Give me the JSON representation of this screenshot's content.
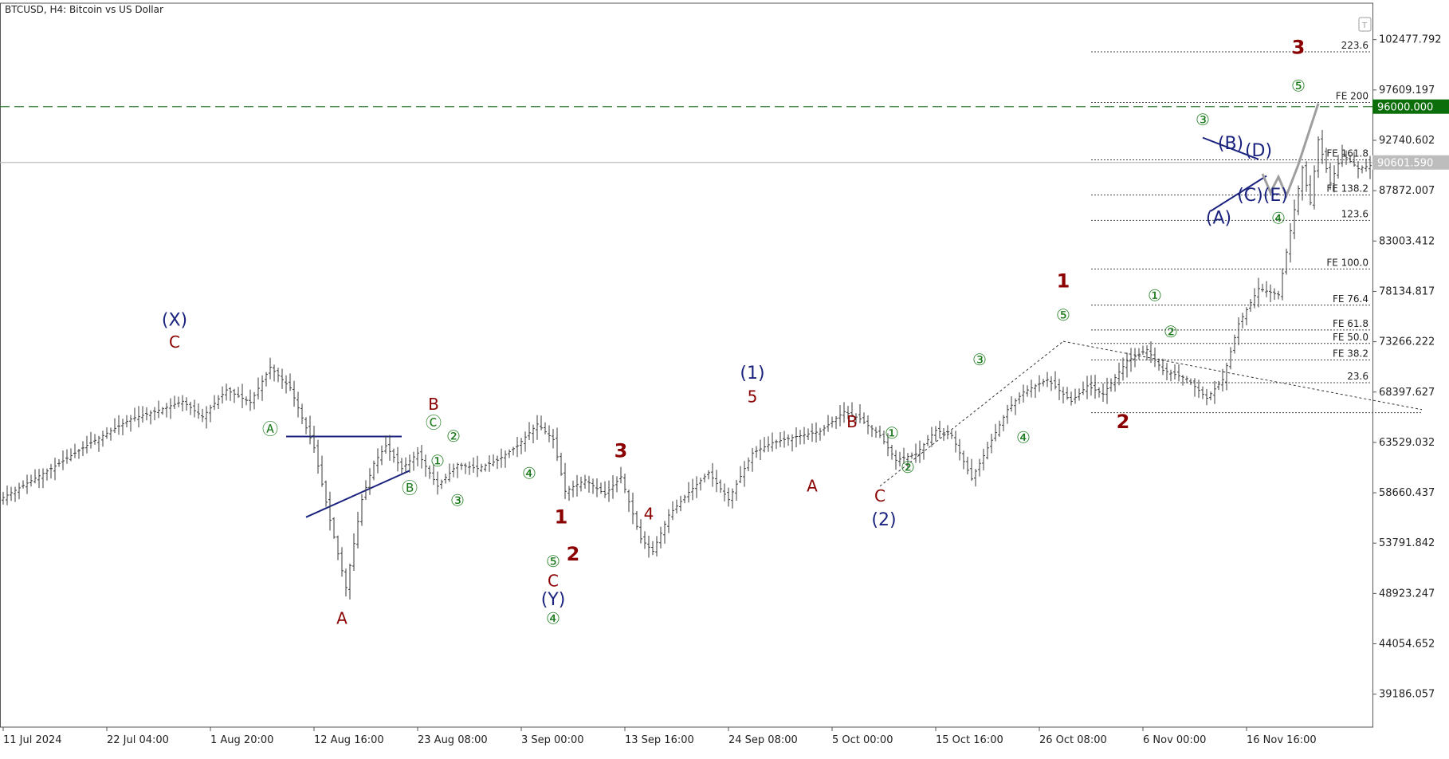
{
  "header": {
    "symbol_title": "BTCUSD, H4:  Bitcoin vs US Dollar",
    "corner_icon": "T"
  },
  "colors": {
    "candle": "#3a3a3a",
    "wave_red": "#8b0000",
    "wave_navy": "#1a237e",
    "wave_green": "#1b7a1b",
    "level_line": "#2e7d32",
    "current_line": "#bdbdbd",
    "projection": "#9e9e9e",
    "fib": "#444444",
    "trendline": "#1a237e"
  },
  "chart_data": {
    "type": "candlestick",
    "timeframe": "H4",
    "ylim": [
      36000,
      106000
    ],
    "y_ticks": [
      "102477.792",
      "97609.197",
      "92740.602",
      "87872.007",
      "83003.412",
      "78134.817",
      "73266.222",
      "68397.627",
      "63529.032",
      "58660.437",
      "53791.842",
      "48923.247",
      "44054.652",
      "39186.057"
    ],
    "x_ticks": [
      "11 Jul 2024",
      "22 Jul 04:00",
      "1 Aug 20:00",
      "12 Aug 16:00",
      "23 Aug 08:00",
      "3 Sep 00:00",
      "13 Sep 16:00",
      "24 Sep 08:00",
      "5 Oct 00:00",
      "15 Oct 16:00",
      "26 Oct 08:00",
      "6 Nov 00:00",
      "16 Nov 16:00"
    ],
    "price_path": [
      [
        0,
        58200
      ],
      [
        12,
        61000
      ],
      [
        22,
        63500
      ],
      [
        32,
        65800
      ],
      [
        38,
        66500
      ],
      [
        45,
        67500
      ],
      [
        50,
        66000
      ],
      [
        56,
        68600
      ],
      [
        62,
        67400
      ],
      [
        67,
        70800
      ],
      [
        72,
        68800
      ],
      [
        78,
        63000
      ],
      [
        82,
        56000
      ],
      [
        86,
        49500
      ],
      [
        90,
        58000
      ],
      [
        93,
        61500
      ],
      [
        96,
        63200
      ],
      [
        100,
        61000
      ],
      [
        104,
        62500
      ],
      [
        109,
        59300
      ],
      [
        114,
        61400
      ],
      [
        119,
        61000
      ],
      [
        124,
        61800
      ],
      [
        129,
        63200
      ],
      [
        134,
        65300
      ],
      [
        138,
        63800
      ],
      [
        141,
        58800
      ],
      [
        146,
        59900
      ],
      [
        151,
        58500
      ],
      [
        155,
        60200
      ],
      [
        160,
        54200
      ],
      [
        163,
        53000
      ],
      [
        167,
        56500
      ],
      [
        172,
        58700
      ],
      [
        177,
        60600
      ],
      [
        182,
        58000
      ],
      [
        188,
        62500
      ],
      [
        193,
        63500
      ],
      [
        199,
        64100
      ],
      [
        205,
        64600
      ],
      [
        211,
        66500
      ],
      [
        215,
        65800
      ],
      [
        220,
        64200
      ],
      [
        224,
        61800
      ],
      [
        229,
        62400
      ],
      [
        234,
        64700
      ],
      [
        238,
        64200
      ],
      [
        243,
        60000
      ],
      [
        247,
        63000
      ],
      [
        252,
        66700
      ],
      [
        256,
        68400
      ],
      [
        262,
        69600
      ],
      [
        268,
        67500
      ],
      [
        272,
        69000
      ],
      [
        276,
        68200
      ],
      [
        282,
        71400
      ],
      [
        287,
        72500
      ],
      [
        291,
        70500
      ],
      [
        297,
        69700
      ],
      [
        302,
        67800
      ],
      [
        306,
        69600
      ],
      [
        310,
        75000
      ],
      [
        315,
        78400
      ],
      [
        320,
        77800
      ],
      [
        323,
        84000
      ],
      [
        326,
        90100
      ],
      [
        328,
        86700
      ],
      [
        330,
        92800
      ],
      [
        333,
        88600
      ],
      [
        336,
        91400
      ],
      [
        340,
        90000
      ],
      [
        343,
        90300
      ]
    ],
    "fib_levels": [
      {
        "label": "223.6",
        "price": 101300
      },
      {
        "label": "FE 200",
        "price": 96400
      },
      {
        "label": "FE 161.8",
        "price": 90850
      },
      {
        "label": "FE 138.2",
        "price": 87450
      },
      {
        "label": "123.6",
        "price": 85000
      },
      {
        "label": "FE 100.0",
        "price": 80300
      },
      {
        "label": "FE 76.4",
        "price": 76800
      },
      {
        "label": "FE 61.8",
        "price": 74400
      },
      {
        "label": "FE 50.0",
        "price": 73100
      },
      {
        "label": "FE 38.2",
        "price": 71500
      },
      {
        "label": "23.6",
        "price": 69300
      },
      {
        "label": "",
        "price": 66400
      }
    ],
    "horizontal_lines": [
      {
        "label": "96000.000",
        "price": 96000,
        "style": "dashed"
      },
      {
        "label": "90601.590",
        "price": 90601.59,
        "style": "solid"
      }
    ],
    "wave_labels": [
      {
        "text": "(X)",
        "i": 43,
        "price": 74800,
        "color": "navy"
      },
      {
        "text": "C",
        "i": 43,
        "price": 72700,
        "color": "red"
      },
      {
        "text": "A",
        "i": 85,
        "price": 46000,
        "color": "red"
      },
      {
        "text": "Ⓐ",
        "i": 67,
        "price": 64300,
        "color": "green"
      },
      {
        "text": "B",
        "i": 108,
        "price": 66700,
        "color": "red"
      },
      {
        "text": "Ⓒ",
        "i": 108,
        "price": 64900,
        "color": "green"
      },
      {
        "text": "②",
        "i": 113,
        "price": 63600,
        "color": "green"
      },
      {
        "text": "①",
        "i": 109,
        "price": 61200,
        "color": "green"
      },
      {
        "text": "Ⓑ",
        "i": 102,
        "price": 58600,
        "color": "green"
      },
      {
        "text": "③",
        "i": 114,
        "price": 57400,
        "color": "green"
      },
      {
        "text": "④",
        "i": 132,
        "price": 60000,
        "color": "green"
      },
      {
        "text": "1",
        "i": 140,
        "price": 55700,
        "color": "red"
      },
      {
        "text": "2",
        "i": 143,
        "price": 52100,
        "color": "red"
      },
      {
        "text": "⑤",
        "i": 138,
        "price": 51500,
        "color": "green"
      },
      {
        "text": "C",
        "i": 138,
        "price": 49600,
        "color": "red"
      },
      {
        "text": "(Y)",
        "i": 138,
        "price": 47800,
        "color": "navy"
      },
      {
        "text": "④",
        "i": 138,
        "price": 46000,
        "color": "green"
      },
      {
        "text": "3",
        "i": 155,
        "price": 62100,
        "color": "red"
      },
      {
        "text": "4",
        "i": 162,
        "price": 56100,
        "color": "red"
      },
      {
        "text": "(1)",
        "i": 188,
        "price": 69700,
        "color": "navy"
      },
      {
        "text": "5",
        "i": 188,
        "price": 67400,
        "color": "red"
      },
      {
        "text": "B",
        "i": 213,
        "price": 65000,
        "color": "red"
      },
      {
        "text": "A",
        "i": 203,
        "price": 58800,
        "color": "red"
      },
      {
        "text": "①",
        "i": 223,
        "price": 63900,
        "color": "green"
      },
      {
        "text": "②",
        "i": 227,
        "price": 60600,
        "color": "green"
      },
      {
        "text": "C",
        "i": 220,
        "price": 57800,
        "color": "red"
      },
      {
        "text": "(2)",
        "i": 221,
        "price": 55500,
        "color": "navy"
      },
      {
        "text": "③",
        "i": 245,
        "price": 71000,
        "color": "green"
      },
      {
        "text": "④",
        "i": 256,
        "price": 63500,
        "color": "green"
      },
      {
        "text": "1",
        "i": 266,
        "price": 78500,
        "color": "red"
      },
      {
        "text": "⑤",
        "i": 266,
        "price": 75300,
        "color": "green"
      },
      {
        "text": "2",
        "i": 281,
        "price": 64900,
        "color": "red"
      },
      {
        "text": "①",
        "i": 289,
        "price": 77200,
        "color": "green"
      },
      {
        "text": "②",
        "i": 293,
        "price": 73700,
        "color": "green"
      },
      {
        "text": "③",
        "i": 301,
        "price": 94200,
        "color": "green"
      },
      {
        "text": "(B)",
        "i": 308,
        "price": 91900,
        "color": "navy"
      },
      {
        "text": "(D)",
        "i": 315,
        "price": 91200,
        "color": "navy"
      },
      {
        "text": "(C)(E)",
        "i": 316,
        "price": 86900,
        "color": "navy"
      },
      {
        "text": "(A)",
        "i": 305,
        "price": 84700,
        "color": "navy"
      },
      {
        "text": "④",
        "i": 320,
        "price": 84700,
        "color": "green"
      },
      {
        "text": "3",
        "i": 325,
        "price": 101100,
        "color": "red"
      },
      {
        "text": "⑤",
        "i": 325,
        "price": 97500,
        "color": "green"
      }
    ]
  }
}
